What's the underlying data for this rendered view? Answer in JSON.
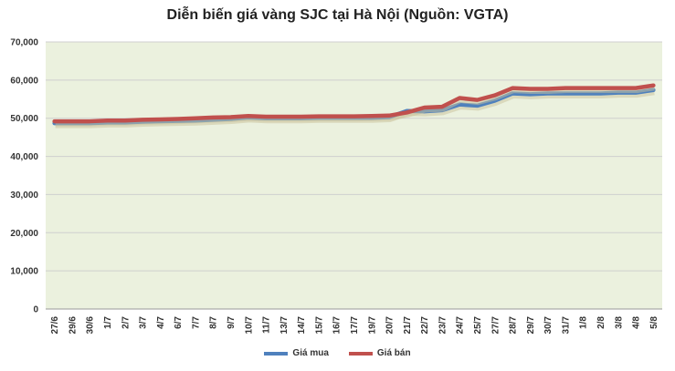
{
  "chart_data": {
    "type": "line",
    "title": "Diễn biến giá vàng SJC tại Hà Nội (Nguồn: VGTA)",
    "xlabel": "",
    "ylabel": "",
    "ylim": [
      0,
      70000
    ],
    "yticks": [
      0,
      10000,
      20000,
      30000,
      40000,
      50000,
      60000,
      70000
    ],
    "ytick_labels": [
      "0",
      "10,000",
      "20,000",
      "30,000",
      "40,000",
      "50,000",
      "60,000",
      "70,000"
    ],
    "grid": true,
    "legend_position": "bottom",
    "categories": [
      "27/6",
      "29/6",
      "30/6",
      "1/7",
      "2/7",
      "3/7",
      "4/7",
      "6/7",
      "7/7",
      "8/7",
      "9/7",
      "10/7",
      "11/7",
      "13/7",
      "14/7",
      "15/7",
      "16/7",
      "17/7",
      "19/7",
      "20/7",
      "21/7",
      "22/7",
      "23/7",
      "24/7",
      "25/7",
      "27/7",
      "28/7",
      "29/7",
      "30/7",
      "31/7",
      "1/8",
      "2/8",
      "3/8",
      "4/8",
      "5/8"
    ],
    "series": [
      {
        "name": "Giá mua",
        "color": "#4f81bd",
        "values": [
          48700,
          48700,
          48700,
          48900,
          48900,
          49100,
          49200,
          49300,
          49400,
          49600,
          49800,
          50200,
          50000,
          50000,
          50000,
          50100,
          50100,
          50100,
          50100,
          50300,
          51900,
          51800,
          52100,
          53600,
          53300,
          54600,
          56500,
          56300,
          56500,
          56500,
          56500,
          56500,
          56700,
          56700,
          57400
        ]
      },
      {
        "name": "Giá bán",
        "color": "#c0504d",
        "values": [
          49200,
          49200,
          49200,
          49400,
          49400,
          49600,
          49700,
          49800,
          50000,
          50200,
          50300,
          50600,
          50400,
          50400,
          50400,
          50500,
          50500,
          50500,
          50600,
          50700,
          51500,
          52800,
          53000,
          55300,
          54800,
          56000,
          57900,
          57700,
          57700,
          57900,
          57900,
          57900,
          57900,
          57900,
          58600
        ]
      }
    ]
  }
}
